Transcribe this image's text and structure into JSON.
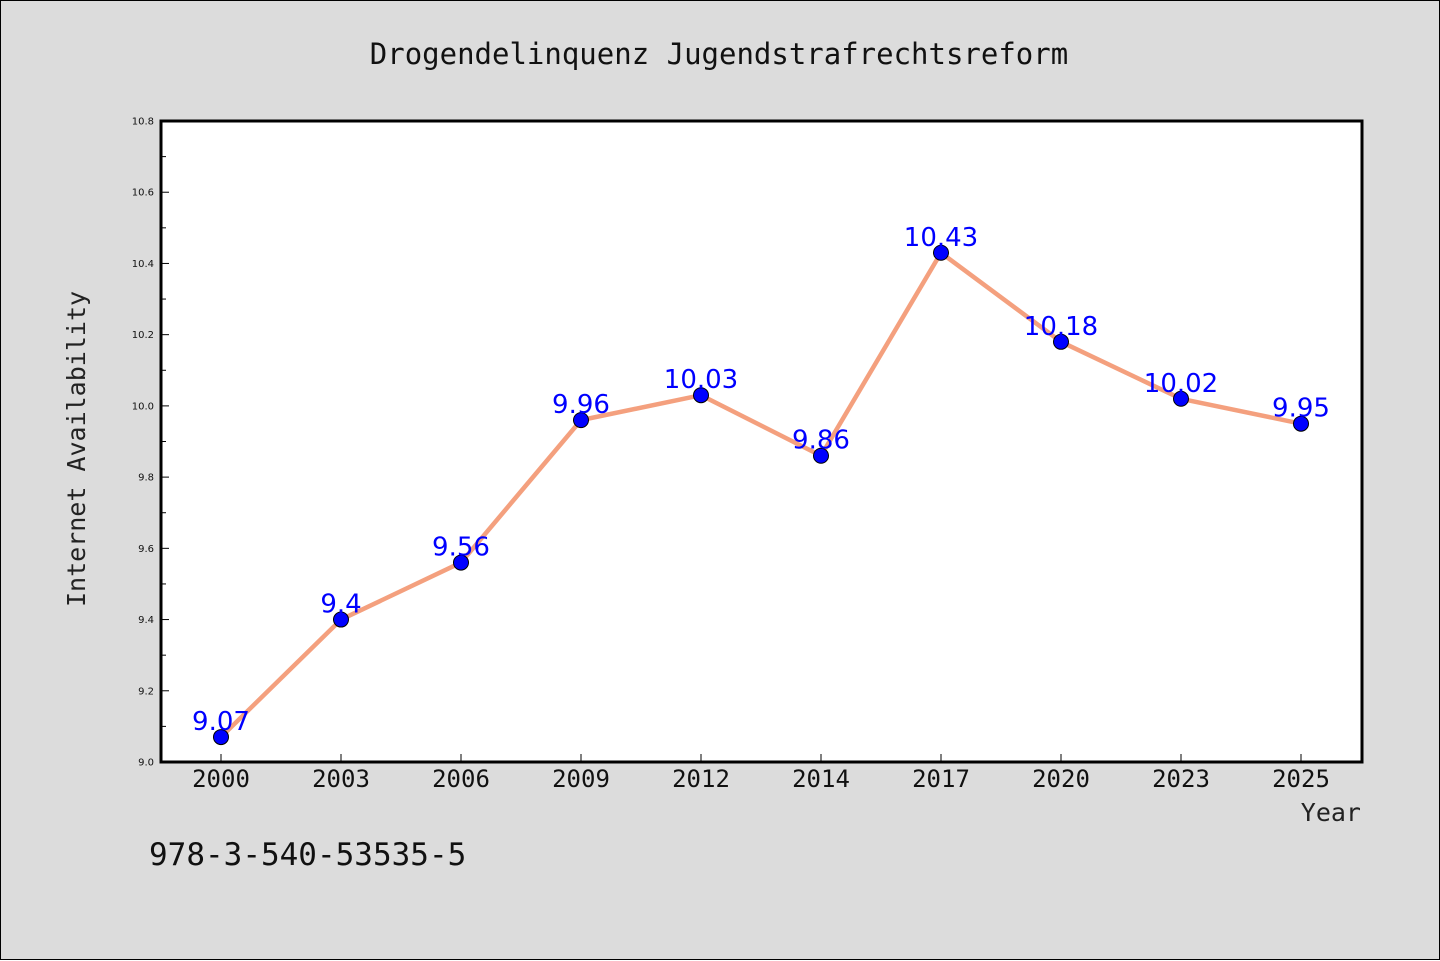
{
  "colors": {
    "background": "#dcdcdc",
    "plot_background": "#ffffff",
    "line": "#f4a07e",
    "marker": "#0000ff",
    "data_label": "#0000ff",
    "frame": "#000000"
  },
  "chart_data": {
    "type": "line",
    "title": "Drogendelinquenz Jugendstrafrechtsreform",
    "xlabel": "Year",
    "ylabel": "Internet Availability",
    "categories": [
      "2000",
      "2003",
      "2006",
      "2009",
      "2012",
      "2014",
      "2017",
      "2020",
      "2023",
      "2025"
    ],
    "series": [
      {
        "values": [
          9.07,
          9.4,
          9.56,
          9.96,
          10.03,
          9.86,
          10.43,
          10.18,
          10.02,
          9.95
        ],
        "data_labels": [
          "9.07",
          "9.4",
          "9.56",
          "9.96",
          "10.03",
          "9.86",
          "10.43",
          "10.18",
          "10.02",
          "9.95"
        ]
      }
    ],
    "ylim": [
      9.0,
      10.8
    ],
    "y_ticks": [
      "9.0",
      "9.2",
      "9.4",
      "9.6",
      "9.8",
      "10.0",
      "10.2",
      "10.4",
      "10.6",
      "10.8"
    ],
    "grid": false,
    "marker": "circle"
  },
  "footer": {
    "code": "978-3-540-53535-5"
  }
}
